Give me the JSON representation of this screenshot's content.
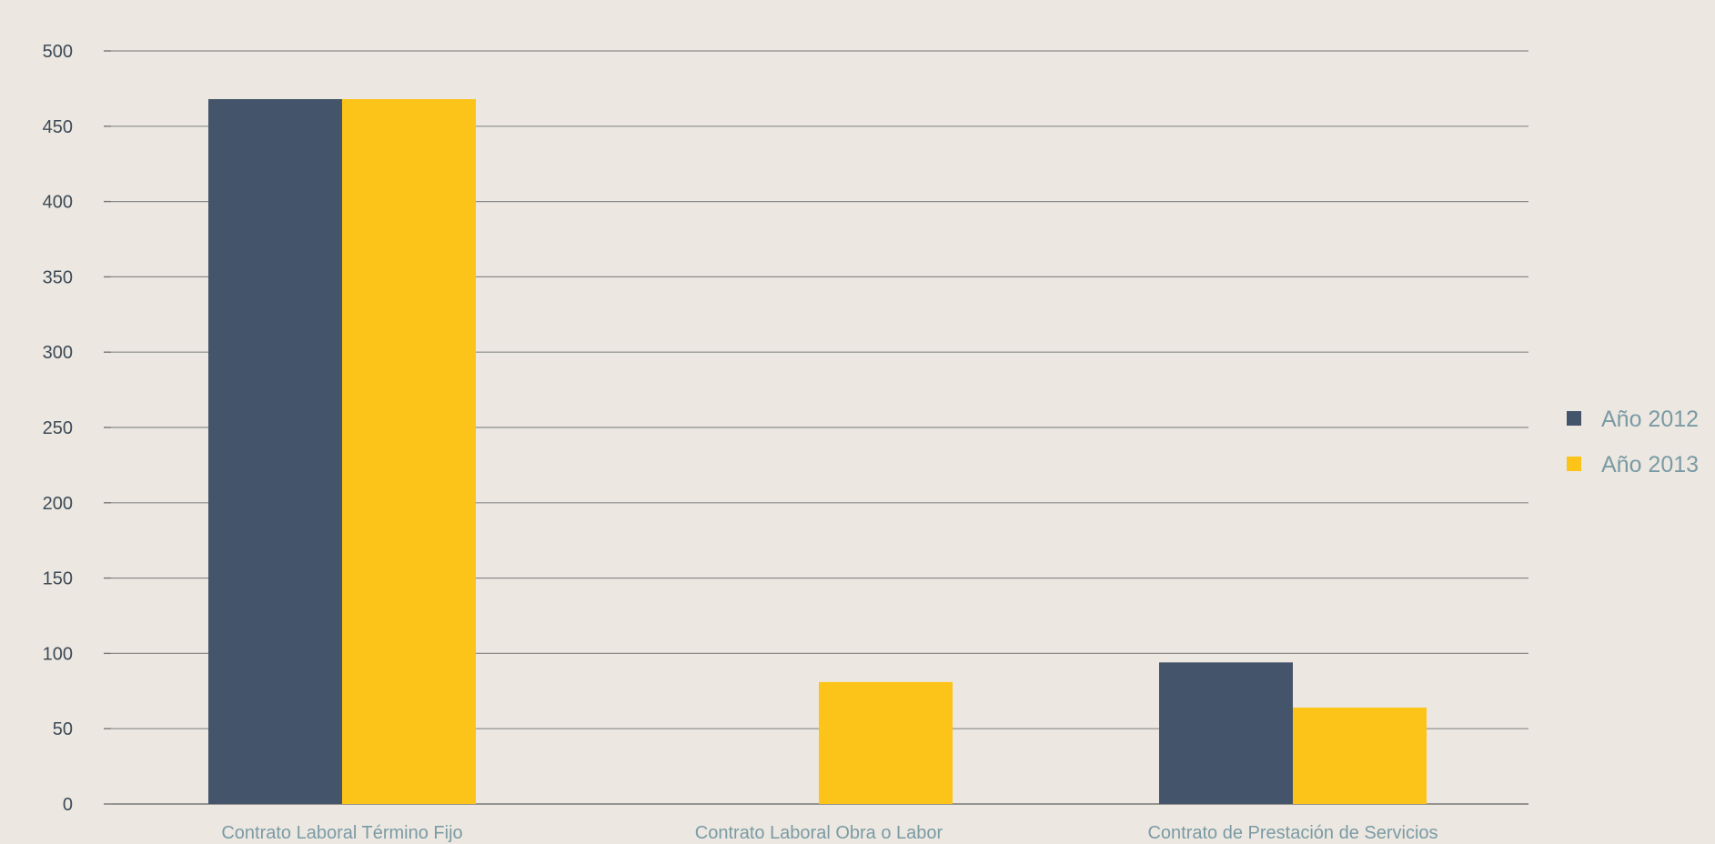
{
  "chart_data": {
    "type": "bar",
    "categories": [
      "Contrato Laboral Término Fijo",
      "Contrato Laboral Obra o Labor",
      "Contrato de Prestación de Servicios"
    ],
    "series": [
      {
        "name": "Año 2012",
        "values": [
          468,
          0,
          94
        ],
        "color": "#44546a"
      },
      {
        "name": "Año 2013",
        "values": [
          468,
          81,
          64
        ],
        "color": "#fcc419"
      }
    ],
    "yticks": [
      "0",
      "50",
      "100",
      "150",
      "200",
      "250",
      "300",
      "350",
      "400",
      "450",
      "500"
    ],
    "ylim": [
      0,
      500
    ],
    "grid": true,
    "legend_position": "right",
    "title": "",
    "xlabel": "",
    "ylabel": ""
  }
}
